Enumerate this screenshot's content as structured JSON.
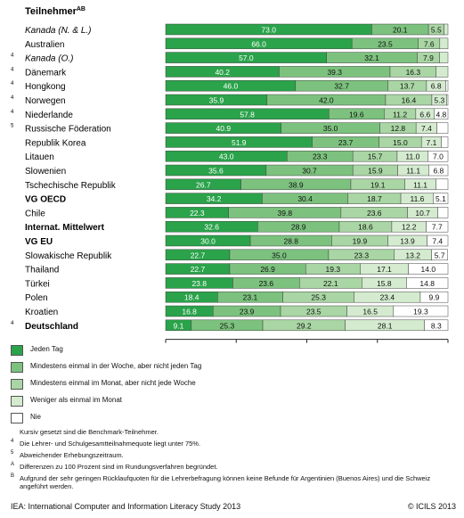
{
  "chart_data": {
    "type": "bar",
    "orientation": "horizontal",
    "stacked": true,
    "title": "Teilnehmer",
    "title_superscript": "AB",
    "xlim": [
      0,
      100
    ],
    "xticks": [
      "0",
      "25",
      "50",
      "75",
      "100"
    ],
    "categories": [
      {
        "label": "Kanada (N. & L.)",
        "italic": true,
        "bold": false,
        "note": "",
        "values": [
          73.0,
          20.1,
          5.5,
          1.4,
          0
        ]
      },
      {
        "label": "Australien",
        "italic": false,
        "bold": false,
        "note": "",
        "values": [
          66.0,
          23.5,
          7.6,
          2.9,
          0
        ]
      },
      {
        "label": "Kanada (O.)",
        "italic": true,
        "bold": false,
        "note": "4",
        "values": [
          57.0,
          32.1,
          7.9,
          3.0,
          0
        ]
      },
      {
        "label": "Dänemark",
        "italic": false,
        "bold": false,
        "note": "4",
        "values": [
          40.2,
          39.3,
          16.3,
          4.2,
          0
        ]
      },
      {
        "label": "Hongkong",
        "italic": false,
        "bold": false,
        "note": "4",
        "values": [
          46.0,
          32.7,
          13.7,
          6.8,
          0.8
        ]
      },
      {
        "label": "Norwegen",
        "italic": false,
        "bold": false,
        "note": "4",
        "values": [
          35.9,
          42.0,
          16.4,
          5.3,
          0.4
        ]
      },
      {
        "label": "Niederlande",
        "italic": false,
        "bold": false,
        "note": "4",
        "values": [
          57.8,
          19.6,
          11.2,
          6.6,
          4.8
        ]
      },
      {
        "label": "Russische Föderation",
        "italic": false,
        "bold": false,
        "note": "5",
        "values": [
          40.9,
          35.0,
          12.8,
          7.4,
          3.9
        ]
      },
      {
        "label": "Republik Korea",
        "italic": false,
        "bold": false,
        "note": "",
        "values": [
          51.9,
          23.7,
          15.0,
          7.1,
          2.3
        ]
      },
      {
        "label": "Litauen",
        "italic": false,
        "bold": false,
        "note": "",
        "values": [
          43.0,
          23.3,
          15.7,
          11.0,
          7.0
        ]
      },
      {
        "label": "Slowenien",
        "italic": false,
        "bold": false,
        "note": "",
        "values": [
          35.6,
          30.7,
          15.9,
          11.1,
          6.8
        ]
      },
      {
        "label": "Tschechische Republik",
        "italic": false,
        "bold": false,
        "note": "",
        "values": [
          26.7,
          38.9,
          19.1,
          11.1,
          4.2
        ]
      },
      {
        "label": "VG OECD",
        "italic": false,
        "bold": true,
        "note": "",
        "values": [
          34.2,
          30.4,
          18.7,
          11.6,
          5.1
        ]
      },
      {
        "label": "Chile",
        "italic": false,
        "bold": false,
        "note": "",
        "values": [
          22.3,
          39.8,
          23.6,
          10.7,
          3.6
        ]
      },
      {
        "label": "Internat. Mittelwert",
        "italic": false,
        "bold": true,
        "note": "",
        "values": [
          32.6,
          28.9,
          18.6,
          12.2,
          7.7
        ]
      },
      {
        "label": "VG EU",
        "italic": false,
        "bold": true,
        "note": "",
        "values": [
          30.0,
          28.8,
          19.9,
          13.9,
          7.4
        ]
      },
      {
        "label": "Slowakische Republik",
        "italic": false,
        "bold": false,
        "note": "",
        "values": [
          22.7,
          35.0,
          23.3,
          13.2,
          5.7
        ]
      },
      {
        "label": "Thailand",
        "italic": false,
        "bold": false,
        "note": "",
        "values": [
          22.7,
          26.9,
          19.3,
          17.1,
          14.0
        ]
      },
      {
        "label": "Türkei",
        "italic": false,
        "bold": false,
        "note": "",
        "values": [
          23.8,
          23.6,
          22.1,
          15.8,
          14.8
        ]
      },
      {
        "label": "Polen",
        "italic": false,
        "bold": false,
        "note": "",
        "values": [
          18.4,
          23.1,
          25.3,
          23.4,
          9.9
        ]
      },
      {
        "label": "Kroatien",
        "italic": false,
        "bold": false,
        "note": "",
        "values": [
          16.8,
          23.9,
          23.5,
          16.5,
          19.3
        ]
      },
      {
        "label": "Deutschland",
        "italic": false,
        "bold": true,
        "note": "4",
        "values": [
          9.1,
          25.3,
          29.2,
          28.1,
          8.3
        ]
      }
    ],
    "series": [
      {
        "name": "Jeden Tag",
        "color": "#2aa34a"
      },
      {
        "name": "Mindestens einmal in der Woche, aber nicht jeden Tag",
        "color": "#7cc27e"
      },
      {
        "name": "Mindestens einmal im Monat, aber nicht jede Woche",
        "color": "#a9d6a4"
      },
      {
        "name": "Weniger als einmal im Monat",
        "color": "#d4ebcf"
      },
      {
        "name": "Nie",
        "color": "#ffffff"
      }
    ],
    "label_threshold": 4.5,
    "grid": false,
    "legend_placement": "bottom-left"
  },
  "footnotes": [
    {
      "mark": "",
      "text": "Kursiv gesetzt sind die Benchmark-Teilnehmer."
    },
    {
      "mark": "4",
      "text": "Die Lehrer- und Schulgesamtteilnahmequote liegt unter 75%."
    },
    {
      "mark": "5",
      "text": "Abweichender Erhebungszeitraum."
    },
    {
      "mark": "A",
      "text": "Differenzen zu 100 Prozent sind im Rundungsverfahren begründet."
    },
    {
      "mark": "B",
      "text": "Aufgrund der sehr geringen Rücklaufquoten für die Lehrerbefragung können keine Befunde für Argentinien (Buenos Aires) und die Schweiz angeführt werden."
    }
  ],
  "footer": {
    "source": "IEA: International Computer and Information Literacy Study 2013",
    "copyright": "© ICILS 2013"
  }
}
